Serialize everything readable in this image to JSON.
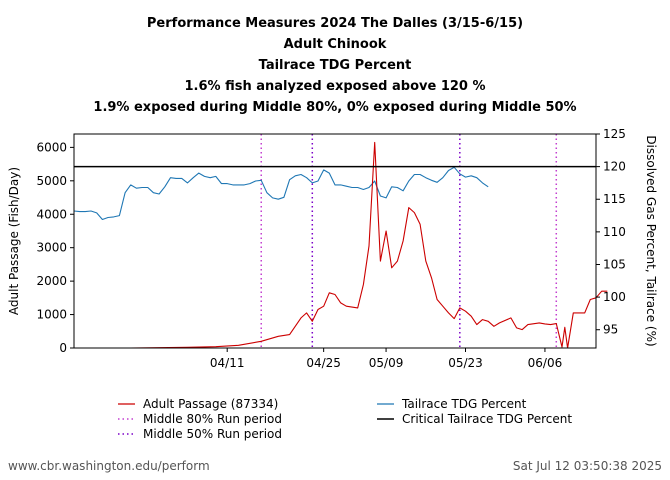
{
  "chart_data": {
    "type": "line",
    "title_lines": [
      "Performance Measures 2024 The Dalles (3/15-6/15)",
      "Adult Chinook",
      "Tailrace TDG Percent",
      "1.6% fish analyzed exposed above 120 %",
      "1.9% exposed during Middle 80%, 0% exposed during Middle 50%"
    ],
    "ylabel_left": "Adult Passage (Fish/Day)",
    "ylabel_right": "Dissolved Gas Percent, Tailrace (%)",
    "x_range_days": [
      0,
      92
    ],
    "x_ticks": [
      {
        "day": 27,
        "label": "04/11"
      },
      {
        "day": 44,
        "label": "04/25"
      },
      {
        "day": 55,
        "label": "05/09"
      },
      {
        "day": 69,
        "label": "05/23"
      },
      {
        "day": 83,
        "label": "06/06"
      }
    ],
    "y_left_range": [
      0,
      6400
    ],
    "y_left_ticks": [
      0,
      1000,
      2000,
      3000,
      4000,
      5000,
      6000
    ],
    "y_right_range": [
      92.2,
      125
    ],
    "y_right_ticks": [
      95,
      100,
      105,
      110,
      115,
      120,
      125
    ],
    "critical_tdg": 120,
    "middle80_days": [
      33,
      85
    ],
    "middle50_days": [
      42,
      68
    ],
    "series": [
      {
        "name": "Adult Passage (87334)",
        "axis": "left",
        "color": "#cc0000",
        "points": [
          [
            5,
            0
          ],
          [
            10,
            0
          ],
          [
            15,
            10
          ],
          [
            20,
            20
          ],
          [
            25,
            40
          ],
          [
            29,
            80
          ],
          [
            33,
            200
          ],
          [
            36,
            350
          ],
          [
            38,
            400
          ],
          [
            40,
            900
          ],
          [
            41,
            1050
          ],
          [
            42,
            800
          ],
          [
            43,
            1150
          ],
          [
            44,
            1250
          ],
          [
            45,
            1650
          ],
          [
            46,
            1600
          ],
          [
            47,
            1350
          ],
          [
            48,
            1250
          ],
          [
            50,
            1200
          ],
          [
            51,
            1900
          ],
          [
            52,
            3050
          ],
          [
            53,
            6150
          ],
          [
            54,
            2600
          ],
          [
            55,
            3500
          ],
          [
            56,
            2400
          ],
          [
            57,
            2600
          ],
          [
            58,
            3200
          ],
          [
            59,
            4200
          ],
          [
            60,
            4050
          ],
          [
            61,
            3700
          ],
          [
            62,
            2600
          ],
          [
            63,
            2100
          ],
          [
            64,
            1450
          ],
          [
            65,
            1250
          ],
          [
            66,
            1050
          ],
          [
            67,
            880
          ],
          [
            68,
            1200
          ],
          [
            69,
            1100
          ],
          [
            70,
            950
          ],
          [
            71,
            700
          ],
          [
            72,
            850
          ],
          [
            73,
            800
          ],
          [
            74,
            650
          ],
          [
            75,
            750
          ],
          [
            77,
            900
          ],
          [
            78,
            600
          ],
          [
            79,
            550
          ],
          [
            80,
            700
          ],
          [
            82,
            750
          ],
          [
            83,
            720
          ],
          [
            84,
            700
          ],
          [
            85,
            730
          ],
          [
            86,
            30
          ],
          [
            86.5,
            620
          ],
          [
            87,
            0
          ],
          [
            88,
            1050
          ],
          [
            90,
            1050
          ],
          [
            91,
            1450
          ],
          [
            92,
            1500
          ],
          [
            93,
            1700
          ],
          [
            94,
            1700
          ]
        ]
      },
      {
        "name": "Tailrace TDG Percent",
        "axis": "right",
        "color": "#1f77b4",
        "points": [
          [
            0,
            113.2
          ],
          [
            1,
            113.1
          ],
          [
            2,
            113.1
          ],
          [
            3,
            113.2
          ],
          [
            4,
            112.9
          ],
          [
            5,
            111.9
          ],
          [
            6,
            112.2
          ],
          [
            7,
            112.3
          ],
          [
            8,
            112.5
          ],
          [
            9,
            116.0
          ],
          [
            10,
            117.2
          ],
          [
            11,
            116.7
          ],
          [
            12,
            116.8
          ],
          [
            13,
            116.8
          ],
          [
            14,
            116.0
          ],
          [
            15,
            115.8
          ],
          [
            16,
            116.9
          ],
          [
            17,
            118.3
          ],
          [
            18,
            118.2
          ],
          [
            19,
            118.2
          ],
          [
            20,
            117.5
          ],
          [
            21,
            118.3
          ],
          [
            22,
            119.0
          ],
          [
            23,
            118.5
          ],
          [
            24,
            118.3
          ],
          [
            25,
            118.5
          ],
          [
            26,
            117.4
          ],
          [
            27,
            117.4
          ],
          [
            28,
            117.2
          ],
          [
            29,
            117.2
          ],
          [
            30,
            117.2
          ],
          [
            31,
            117.4
          ],
          [
            32,
            117.8
          ],
          [
            33,
            117.9
          ],
          [
            34,
            116.0
          ],
          [
            35,
            115.2
          ],
          [
            36,
            115.0
          ],
          [
            37,
            115.3
          ],
          [
            38,
            118.0
          ],
          [
            39,
            118.6
          ],
          [
            40,
            118.8
          ],
          [
            41,
            118.3
          ],
          [
            42,
            117.5
          ],
          [
            43,
            117.8
          ],
          [
            44,
            119.5
          ],
          [
            45,
            119.0
          ],
          [
            46,
            117.2
          ],
          [
            47,
            117.2
          ],
          [
            48,
            117.0
          ],
          [
            49,
            116.8
          ],
          [
            50,
            116.8
          ],
          [
            51,
            116.5
          ],
          [
            52,
            116.8
          ],
          [
            53,
            117.8
          ],
          [
            54,
            115.5
          ],
          [
            55,
            115.2
          ],
          [
            56,
            116.9
          ],
          [
            57,
            116.8
          ],
          [
            58,
            116.3
          ],
          [
            59,
            117.8
          ],
          [
            60,
            118.8
          ],
          [
            61,
            118.8
          ],
          [
            62,
            118.3
          ],
          [
            63,
            117.9
          ],
          [
            64,
            117.6
          ],
          [
            65,
            118.3
          ],
          [
            66,
            119.4
          ],
          [
            67,
            119.9
          ],
          [
            68,
            118.9
          ],
          [
            69,
            118.4
          ],
          [
            70,
            118.6
          ],
          [
            71,
            118.3
          ],
          [
            72,
            117.5
          ],
          [
            73,
            116.9
          ]
        ]
      },
      {
        "name": "Middle 80% Run period",
        "style": "dotted",
        "color": "#c33ed0"
      },
      {
        "name": "Middle 50% Run period",
        "style": "dotted",
        "color": "#7b00c8"
      },
      {
        "name": "Critical Tailrace TDG Percent",
        "style": "solid",
        "color": "#000000",
        "value": 120
      }
    ]
  },
  "footer": {
    "left": "www.cbr.washington.edu/perform",
    "right": "Sat Jul 12 03:50:38 2025"
  }
}
